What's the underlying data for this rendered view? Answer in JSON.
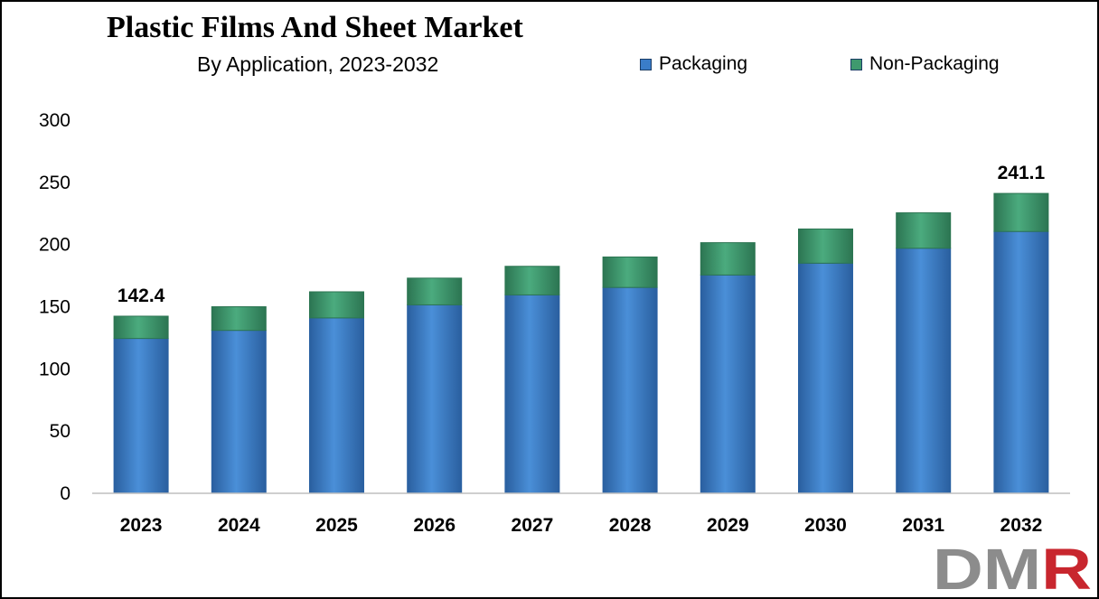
{
  "title": "Plastic Films And Sheet Market",
  "subtitle": "By Application, 2023-2032",
  "logo_text": "DMR",
  "colors": {
    "packaging": "#3a7dc9",
    "packaging_dark": "#2b62a3",
    "non_packaging": "#3f9a6e",
    "non_packaging_dark": "#2c7552",
    "logo_gray": "#8c8c8c",
    "logo_red": "#c8262e"
  },
  "chart_data": {
    "type": "bar",
    "stacked": true,
    "title": "Plastic Films And Sheet Market",
    "subtitle": "By Application, 2023-2032",
    "xlabel": "",
    "ylabel": "",
    "categories": [
      "2023",
      "2024",
      "2025",
      "2026",
      "2027",
      "2028",
      "2029",
      "2030",
      "2031",
      "2032"
    ],
    "series": [
      {
        "name": "Packaging",
        "values": [
          124.5,
          131.0,
          141.0,
          151.5,
          159.5,
          165.5,
          175.5,
          185.0,
          197.0,
          210.5
        ]
      },
      {
        "name": "Non-Packaging",
        "values": [
          17.9,
          19.0,
          21.0,
          21.5,
          23.0,
          24.5,
          26.0,
          27.5,
          28.5,
          30.6
        ]
      }
    ],
    "ylim": [
      0,
      300
    ],
    "yticks": [
      "0",
      "50",
      "100",
      "150",
      "200",
      "250",
      "300"
    ],
    "data_labels": [
      {
        "category": "2023",
        "text": "142.4"
      },
      {
        "category": "2032",
        "text": "241.1"
      }
    ],
    "legend_position": "top-right",
    "grid": false
  }
}
